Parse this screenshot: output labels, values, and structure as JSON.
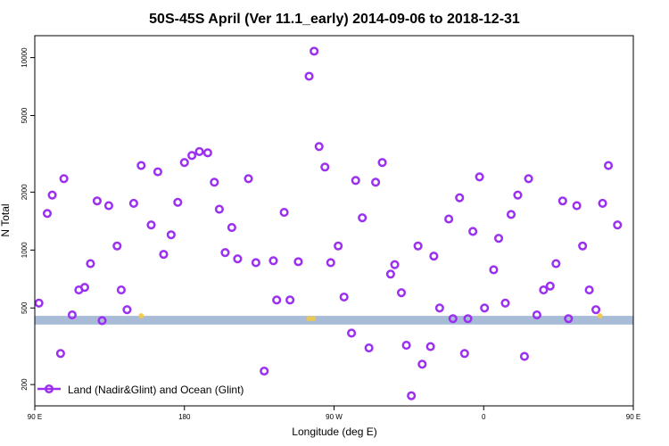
{
  "chart_data": {
    "type": "scatter",
    "title": "50S-45S April (Ver 11.1_early)   2014-09-06 to 2018-12-31",
    "xlabel": "Longitude (deg E)",
    "ylabel": "N Total",
    "xlim": [
      90,
      450
    ],
    "ylim": [
      155,
      13000
    ],
    "y_scale": "log",
    "x_ticks": [
      {
        "value": 90,
        "label": "90 E"
      },
      {
        "value": 180,
        "label": "180"
      },
      {
        "value": 270,
        "label": "90 W"
      },
      {
        "value": 360,
        "label": "0"
      },
      {
        "value": 450,
        "label": "90 E"
      },
      {
        "value": 540,
        "label": "180"
      }
    ],
    "y_ticks": [
      {
        "value": 200,
        "label": "200"
      },
      {
        "value": 500,
        "label": "500"
      },
      {
        "value": 1000,
        "label": "1000"
      },
      {
        "value": 2000,
        "label": "2000"
      },
      {
        "value": 5000,
        "label": "5000"
      },
      {
        "value": 10000,
        "label": "10000"
      }
    ],
    "band": {
      "y_min": 410,
      "y_max": 455,
      "color": "#a8bcd8"
    },
    "grid": false,
    "legend_position": "bottom-left",
    "series": [
      {
        "name": "Land (Nadir&Glint) and Ocean (Glint)",
        "color": "#9b30f0",
        "marker": "open-circle",
        "points": [
          [
            92.5,
            530
          ],
          [
            97.5,
            1550
          ],
          [
            100.5,
            1930
          ],
          [
            105.5,
            290
          ],
          [
            107.5,
            2350
          ],
          [
            112.5,
            460
          ],
          [
            116.5,
            620
          ],
          [
            120,
            640
          ],
          [
            123.5,
            850
          ],
          [
            127.5,
            1800
          ],
          [
            130.5,
            430
          ],
          [
            134.5,
            1700
          ],
          [
            139.5,
            1050
          ],
          [
            142,
            620
          ],
          [
            145.5,
            490
          ],
          [
            149.5,
            1750
          ],
          [
            154,
            2750
          ],
          [
            160,
            1350
          ],
          [
            164,
            2550
          ],
          [
            167.5,
            950
          ],
          [
            172,
            1200
          ],
          [
            176,
            1770
          ],
          [
            180,
            2850
          ],
          [
            184.5,
            3100
          ],
          [
            189,
            3250
          ],
          [
            194,
            3200
          ],
          [
            198,
            2250
          ],
          [
            201,
            1630
          ],
          [
            204.5,
            970
          ],
          [
            208.5,
            1310
          ],
          [
            212,
            900
          ],
          [
            218.5,
            2350
          ],
          [
            223,
            860
          ],
          [
            228,
            235
          ],
          [
            233.5,
            880
          ],
          [
            235.5,
            550
          ],
          [
            240,
            1570
          ],
          [
            243.5,
            550
          ],
          [
            248.5,
            870
          ],
          [
            255,
            8000
          ],
          [
            258,
            10800
          ],
          [
            261,
            3450
          ],
          [
            264.5,
            2700
          ],
          [
            268,
            860
          ],
          [
            272.5,
            1050
          ],
          [
            276,
            570
          ],
          [
            280.5,
            370
          ],
          [
            283,
            2300
          ],
          [
            287,
            1470
          ],
          [
            291,
            310
          ],
          [
            295,
            2250
          ],
          [
            299,
            2850
          ],
          [
            304,
            750
          ],
          [
            306.5,
            840
          ],
          [
            310.5,
            600
          ],
          [
            313.5,
            320
          ],
          [
            316.5,
            175
          ],
          [
            320.5,
            1050
          ],
          [
            323,
            255
          ],
          [
            328,
            315
          ],
          [
            330,
            930
          ],
          [
            333.5,
            500
          ],
          [
            339,
            1450
          ],
          [
            341.5,
            440
          ],
          [
            345.5,
            1870
          ],
          [
            348.5,
            290
          ],
          [
            350.5,
            440
          ],
          [
            353.5,
            1250
          ],
          [
            357.5,
            2400
          ],
          [
            360.5,
            500
          ],
          [
            366,
            790
          ],
          [
            369,
            1150
          ],
          [
            373,
            530
          ],
          [
            376.5,
            1530
          ],
          [
            380.5,
            1930
          ],
          [
            384.5,
            280
          ],
          [
            387,
            2350
          ],
          [
            392,
            460
          ],
          [
            396,
            620
          ],
          [
            400,
            650
          ],
          [
            403.5,
            850
          ],
          [
            407.5,
            1800
          ],
          [
            411,
            440
          ],
          [
            416,
            1700
          ],
          [
            419.5,
            1050
          ],
          [
            423.5,
            620
          ],
          [
            427.5,
            490
          ],
          [
            431.5,
            1750
          ],
          [
            435,
            2750
          ],
          [
            440.5,
            1350
          ]
        ]
      }
    ],
    "faint_series": {
      "color": "#f2c84b",
      "points": [
        [
          154,
          455
        ],
        [
          255,
          440
        ],
        [
          257.5,
          440
        ],
        [
          430,
          455
        ]
      ]
    }
  }
}
